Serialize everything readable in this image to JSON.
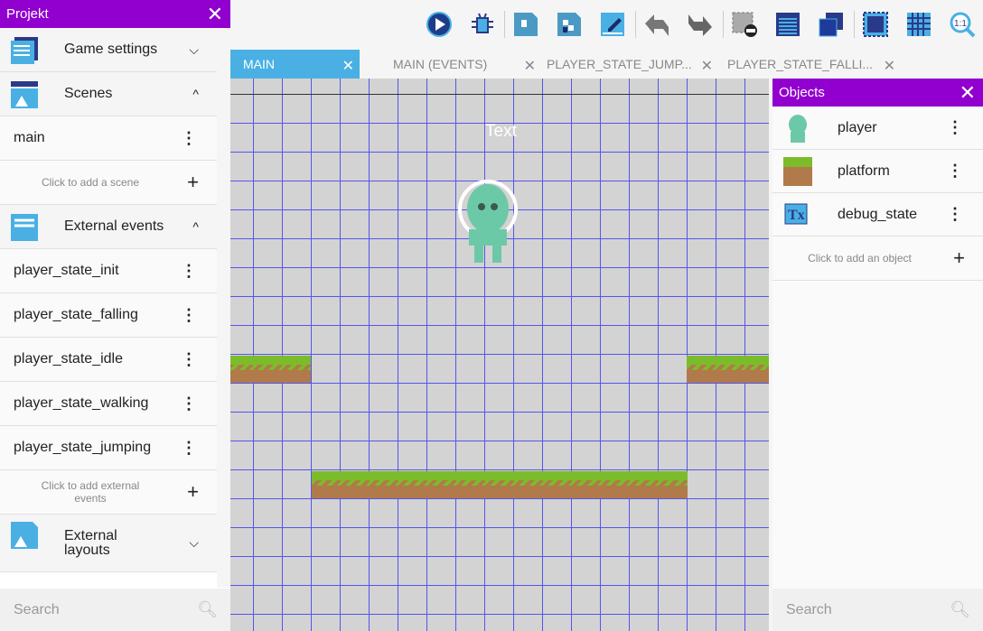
{
  "toolbar": {
    "icons": [
      "play-preview-icon",
      "debug-icon",
      "scene-object-icon",
      "object-groups-icon",
      "edit-properties-icon",
      "undo-icon",
      "redo-icon",
      "delete-icon",
      "layers-icon",
      "instances-list-icon",
      "window-mask-icon",
      "grid-icon",
      "zoom-reset-icon"
    ]
  },
  "tabs": [
    {
      "label": "MAIN",
      "active": true
    },
    {
      "label": "MAIN (EVENTS)"
    },
    {
      "label": "PLAYER_STATE_JUMP..."
    },
    {
      "label": "PLAYER_STATE_FALLI..."
    }
  ],
  "project": {
    "title": "Projekt",
    "game_settings": "Game settings",
    "scenes": "Scenes",
    "scene_items": [
      "main"
    ],
    "add_scene": "Click to add a scene",
    "external_events": "External events",
    "event_items": [
      "player_state_init",
      "player_state_falling",
      "player_state_idle",
      "player_state_walking",
      "player_state_jumping"
    ],
    "add_events": "Click to add external events",
    "external_layouts": "External layouts",
    "search_placeholder": "Search"
  },
  "canvas": {
    "text_object": "Text"
  },
  "objects": {
    "title": "Objects",
    "items": [
      "player",
      "platform",
      "debug_state"
    ],
    "add": "Click to add an object",
    "search_placeholder": "Search"
  },
  "colors": {
    "accent": "#9100ce",
    "tab_active": "#4ab0e4",
    "grid": "#5555ee"
  }
}
